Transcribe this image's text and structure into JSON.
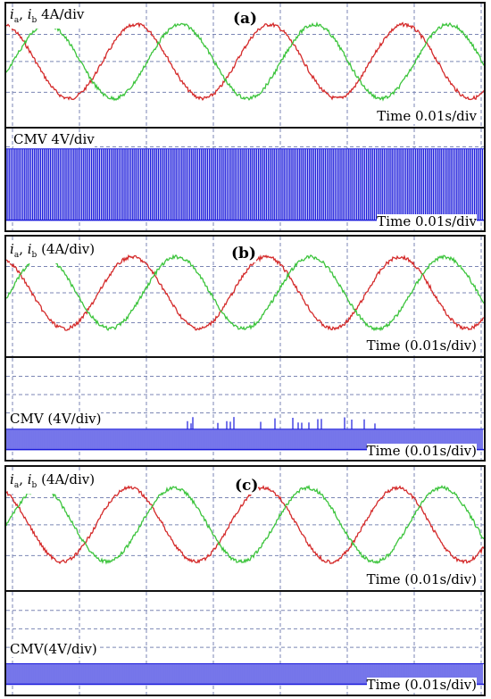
{
  "colors": {
    "ia": "#d42a2a",
    "ib": "#3cc43c",
    "cmv": "#1a1adb",
    "grid": "#7b86b4",
    "frame": "#111111"
  },
  "panels": [
    {
      "tag": "(a)",
      "current_label": {
        "i1": "i",
        "s1": "a",
        "sep": ", ",
        "i2": "i",
        "s2": "b",
        "tail": "  4A/div"
      },
      "current_time": "Time 0.01s/div",
      "cmv_label": "CMV  4V/div",
      "cmv_time": "Time 0.01s/div"
    },
    {
      "tag": "(b)",
      "current_label": {
        "i1": "i",
        "s1": "a",
        "sep": ", ",
        "i2": "i",
        "s2": "b",
        "tail": "  (4A/div)"
      },
      "current_time": "Time (0.01s/div)",
      "cmv_label": "CMV (4V/div)",
      "cmv_time": "Time (0.01s/div)"
    },
    {
      "tag": "(c)",
      "current_label": {
        "i1": "i",
        "s1": "a",
        "sep": ", ",
        "i2": "i",
        "s2": "b",
        "tail": "  (4A/div)"
      },
      "current_time": "Time (0.01s/div)",
      "cmv_label": "CMV(4V/div)",
      "cmv_time": "Time (0.01s/div)"
    }
  ],
  "chart_data": [
    {
      "type": "line",
      "panel": "(a)",
      "xlabel": "Time 0.01s/div",
      "ylabel": "ia, ib 4A/div",
      "x_divisions": 7,
      "frequency_hz": 50,
      "amplitude_A": 4,
      "series": [
        {
          "name": "ia",
          "color": "#d42a2a",
          "phase_deg": 0
        },
        {
          "name": "ib",
          "color": "#3cc43c",
          "phase_deg": -120
        }
      ],
      "cmv": {
        "ylabel": "CMV 4V/div",
        "pattern": "dense high-frequency pulses, full band",
        "band_fraction": 1.0
      }
    },
    {
      "type": "line",
      "panel": "(b)",
      "xlabel": "Time (0.01s/div)",
      "ylabel": "ia, ib (4A/div)",
      "x_divisions": 7,
      "frequency_hz": 50,
      "amplitude_A": 4,
      "series": [
        {
          "name": "ia",
          "color": "#d42a2a",
          "phase_deg": 0
        },
        {
          "name": "ib",
          "color": "#3cc43c",
          "phase_deg": -120
        }
      ],
      "cmv": {
        "ylabel": "CMV (4V/div)",
        "pattern": "low-amplitude pulses with sparse spikes",
        "band_fraction": 0.45
      }
    },
    {
      "type": "line",
      "panel": "(c)",
      "xlabel": "Time (0.01s/div)",
      "ylabel": "ia, ib (4A/div)",
      "x_divisions": 7,
      "frequency_hz": 50,
      "amplitude_A": 4,
      "series": [
        {
          "name": "ia",
          "color": "#d42a2a",
          "phase_deg": 0
        },
        {
          "name": "ib",
          "color": "#3cc43c",
          "phase_deg": -120
        }
      ],
      "cmv": {
        "ylabel": "CMV(4V/div)",
        "pattern": "low-amplitude regular pulses",
        "band_fraction": 0.45
      }
    }
  ]
}
